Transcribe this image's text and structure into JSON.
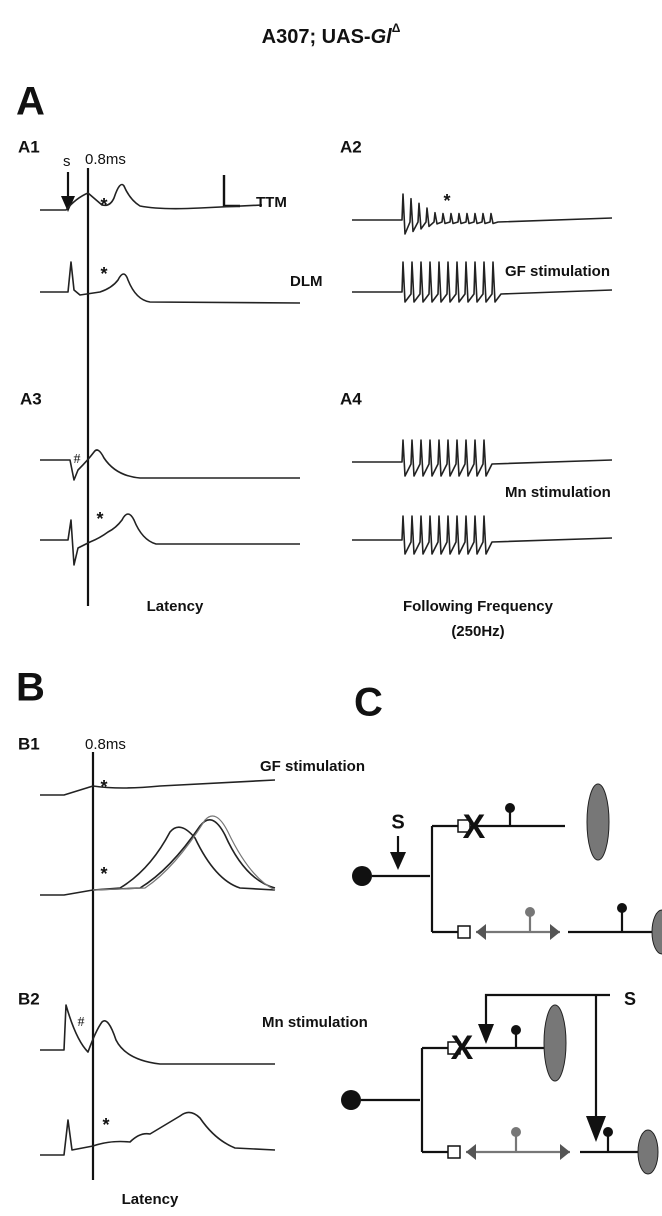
{
  "title": {
    "prefix": "A307; UAS-",
    "gene": "Gl",
    "superscript": "Δ"
  },
  "panel_a": {
    "label": "A",
    "a1": {
      "label": "A1",
      "stimulus": "s",
      "delay": "0.8ms",
      "muscles": [
        "TTM",
        "DLM"
      ],
      "markers": [
        "*",
        "*"
      ]
    },
    "a2": {
      "label": "A2",
      "marker": "*",
      "condition": "GF stimulation"
    },
    "a3": {
      "label": "A3",
      "markers": [
        "#",
        "*"
      ]
    },
    "a4": {
      "label": "A4",
      "condition": "Mn stimulation"
    },
    "x_labels": [
      "Latency",
      "Following Frequency",
      "(250Hz)"
    ]
  },
  "panel_b": {
    "label": "B",
    "b1": {
      "label": "B1",
      "delay": "0.8ms",
      "condition": "GF stimulation",
      "markers": [
        "*",
        "*"
      ]
    },
    "b2": {
      "label": "B2",
      "condition": "Mn stimulation",
      "markers": [
        "#",
        "*"
      ]
    },
    "x_label": "Latency"
  },
  "panel_c": {
    "label": "C",
    "stimulus_labels": [
      "S",
      "S"
    ]
  }
}
